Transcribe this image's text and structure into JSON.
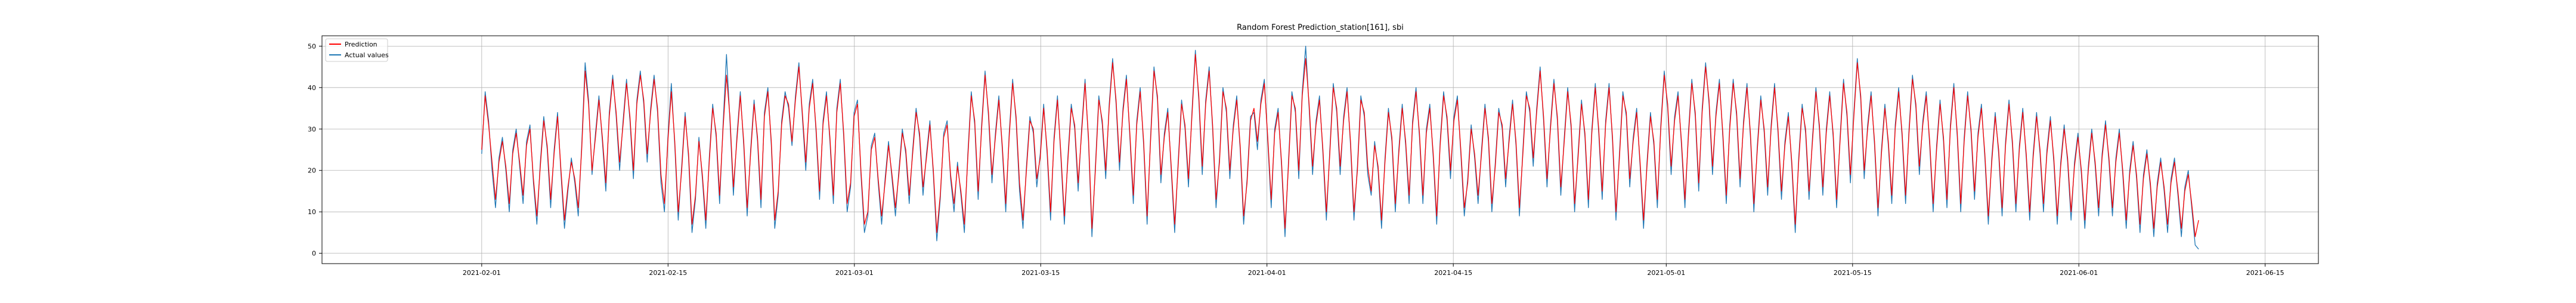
{
  "chart_data": {
    "type": "line",
    "title": "Random Forest Prediction_station[161], sbi",
    "xlabel": "",
    "ylabel": "",
    "x_start": "2021-02-01",
    "x_end": "2021-06-10",
    "xlim": [
      "2021-01-20",
      "2021-06-19"
    ],
    "ylim": [
      -2.5,
      52.5
    ],
    "x_ticks": [
      "2021-02-01",
      "2021-02-15",
      "2021-03-01",
      "2021-03-15",
      "2021-04-01",
      "2021-04-15",
      "2021-05-01",
      "2021-05-15",
      "2021-06-01",
      "2021-06-15"
    ],
    "y_ticks": [
      0,
      10,
      20,
      30,
      40,
      50
    ],
    "grid": true,
    "legend_position": "top-left",
    "series": [
      {
        "name": "Prediction",
        "color": "#ff0000",
        "values": [
          25,
          38,
          31,
          22,
          13,
          22,
          27,
          21,
          12,
          24,
          29,
          22,
          14,
          26,
          30,
          18,
          9,
          21,
          32,
          26,
          13,
          24,
          33,
          20,
          8,
          16,
          22,
          18,
          11,
          25,
          44,
          36,
          20,
          28,
          37,
          28,
          17,
          33,
          42,
          34,
          22,
          31,
          41,
          33,
          20,
          36,
          43,
          37,
          24,
          34,
          42,
          35,
          19,
          12,
          27,
          39,
          27,
          10,
          20,
          33,
          24,
          7,
          14,
          27,
          19,
          8,
          22,
          35,
          29,
          14,
          30,
          43,
          33,
          16,
          27,
          38,
          27,
          11,
          24,
          36,
          28,
          13,
          33,
          39,
          27,
          8,
          15,
          31,
          38,
          36,
          27,
          37,
          45,
          34,
          22,
          35,
          41,
          30,
          15,
          31,
          38,
          28,
          14,
          34,
          41,
          29,
          12,
          17,
          33,
          36,
          20,
          7,
          10,
          25,
          28,
          18,
          9,
          17,
          26,
          19,
          11,
          19,
          29,
          25,
          14,
          24,
          34,
          29,
          16,
          23,
          31,
          20,
          5,
          14,
          28,
          31,
          19,
          12,
          21,
          15,
          7,
          23,
          38,
          32,
          15,
          30,
          43,
          34,
          19,
          28,
          37,
          26,
          12,
          28,
          41,
          33,
          17,
          8,
          20,
          32,
          30,
          18,
          23,
          35,
          25,
          10,
          27,
          37,
          24,
          9,
          22,
          35,
          31,
          17,
          29,
          41,
          28,
          6,
          20,
          37,
          32,
          20,
          35,
          46,
          37,
          22,
          34,
          42,
          29,
          14,
          31,
          39,
          27,
          9,
          27,
          44,
          38,
          19,
          28,
          34,
          21,
          7,
          21,
          36,
          31,
          18,
          33,
          48,
          38,
          21,
          36,
          44,
          31,
          13,
          22,
          39,
          35,
          20,
          30,
          37,
          26,
          9,
          17,
          32,
          35,
          27,
          36,
          41,
          28,
          13,
          29,
          34,
          22,
          6,
          21,
          38,
          35,
          20,
          38,
          47,
          36,
          21,
          31,
          37,
          25,
          10,
          24,
          40,
          35,
          21,
          32,
          39,
          27,
          10,
          20,
          37,
          34,
          21,
          15,
          26,
          21,
          8,
          22,
          34,
          28,
          12,
          24,
          35,
          27,
          14,
          31,
          39,
          29,
          14,
          29,
          35,
          24,
          9,
          26,
          38,
          33,
          20,
          32,
          37,
          25,
          11,
          17,
          30,
          24,
          14,
          24,
          35,
          28,
          12,
          21,
          34,
          31,
          18,
          27,
          36,
          27,
          11,
          24,
          38,
          35,
          23,
          34,
          44,
          33,
          18,
          30,
          41,
          33,
          16,
          27,
          39,
          31,
          12,
          23,
          36,
          29,
          13,
          29,
          40,
          30,
          15,
          31,
          40,
          28,
          10,
          23,
          38,
          34,
          18,
          27,
          34,
          22,
          8,
          21,
          33,
          27,
          13,
          30,
          43,
          36,
          21,
          32,
          38,
          27,
          13,
          28,
          41,
          34,
          17,
          34,
          45,
          37,
          21,
          33,
          41,
          29,
          14,
          30,
          41,
          34,
          18,
          31,
          40,
          29,
          12,
          25,
          37,
          30,
          16,
          30,
          40,
          30,
          15,
          26,
          33,
          22,
          7,
          22,
          35,
          30,
          15,
          27,
          39,
          31,
          16,
          29,
          38,
          29,
          13,
          27,
          41,
          34,
          19,
          33,
          46,
          38,
          20,
          30,
          38,
          27,
          11,
          24,
          35,
          27,
          14,
          30,
          39,
          29,
          14,
          29,
          42,
          36,
          21,
          31,
          38,
          27,
          12,
          25,
          36,
          28,
          13,
          30,
          40,
          29,
          12,
          27,
          38,
          30,
          15,
          28,
          35,
          24,
          9,
          22,
          33,
          25,
          11,
          26,
          36,
          27,
          12,
          25,
          34,
          24,
          10,
          23,
          33,
          25,
          12,
          24,
          32,
          23,
          9,
          21,
          30,
          23,
          10,
          21,
          28,
          20,
          8,
          20,
          29,
          22,
          11,
          23,
          31,
          23,
          11,
          22,
          29,
          20,
          8,
          19,
          26,
          19,
          7,
          18,
          24,
          17,
          6,
          16,
          22,
          16,
          7,
          17,
          22,
          15,
          6,
          15,
          19,
          12,
          4,
          8
        ]
      },
      {
        "name": "Actual values",
        "color": "#1f77b4",
        "values": [
          24,
          39,
          32,
          20,
          11,
          23,
          28,
          20,
          10,
          25,
          30,
          21,
          12,
          27,
          31,
          17,
          7,
          22,
          33,
          25,
          11,
          25,
          34,
          19,
          6,
          15,
          23,
          17,
          9,
          26,
          46,
          37,
          19,
          29,
          38,
          27,
          15,
          34,
          43,
          33,
          20,
          32,
          42,
          32,
          18,
          37,
          44,
          36,
          22,
          35,
          43,
          34,
          17,
          10,
          28,
          41,
          26,
          8,
          21,
          34,
          23,
          5,
          13,
          28,
          18,
          6,
          23,
          36,
          28,
          12,
          31,
          48,
          32,
          14,
          28,
          39,
          26,
          9,
          25,
          37,
          27,
          11,
          34,
          40,
          26,
          6,
          14,
          32,
          39,
          35,
          26,
          38,
          46,
          33,
          20,
          36,
          42,
          29,
          13,
          32,
          39,
          27,
          12,
          35,
          42,
          28,
          10,
          16,
          34,
          37,
          19,
          5,
          9,
          26,
          29,
          17,
          7,
          18,
          27,
          18,
          9,
          20,
          30,
          24,
          12,
          25,
          35,
          28,
          14,
          24,
          32,
          19,
          3,
          13,
          29,
          32,
          18,
          10,
          22,
          14,
          5,
          24,
          39,
          31,
          13,
          31,
          44,
          33,
          17,
          29,
          38,
          25,
          10,
          29,
          42,
          32,
          15,
          6,
          21,
          33,
          29,
          16,
          24,
          36,
          24,
          8,
          28,
          38,
          23,
          7,
          23,
          36,
          30,
          15,
          30,
          42,
          27,
          4,
          21,
          38,
          31,
          18,
          36,
          47,
          36,
          20,
          35,
          43,
          28,
          12,
          32,
          40,
          26,
          7,
          28,
          45,
          37,
          17,
          29,
          35,
          20,
          5,
          22,
          37,
          30,
          16,
          34,
          49,
          37,
          19,
          37,
          45,
          30,
          11,
          23,
          40,
          34,
          18,
          31,
          38,
          25,
          7,
          18,
          33,
          34,
          25,
          37,
          42,
          27,
          11,
          30,
          35,
          21,
          4,
          22,
          39,
          34,
          18,
          39,
          50,
          35,
          19,
          32,
          38,
          24,
          8,
          25,
          41,
          34,
          19,
          33,
          40,
          26,
          8,
          21,
          38,
          33,
          19,
          14,
          27,
          20,
          6,
          23,
          35,
          27,
          10,
          25,
          36,
          26,
          12,
          32,
          40,
          28,
          12,
          30,
          36,
          23,
          7,
          27,
          39,
          32,
          18,
          33,
          38,
          24,
          9,
          18,
          31,
          23,
          12,
          25,
          36,
          27,
          10,
          22,
          35,
          30,
          16,
          28,
          37,
          26,
          9,
          25,
          39,
          34,
          21,
          35,
          45,
          32,
          16,
          31,
          42,
          32,
          14,
          28,
          40,
          30,
          10,
          24,
          37,
          28,
          11,
          30,
          41,
          29,
          13,
          32,
          41,
          27,
          8,
          24,
          39,
          33,
          16,
          28,
          35,
          21,
          6,
          22,
          34,
          26,
          11,
          31,
          44,
          35,
          19,
          33,
          39,
          26,
          11,
          29,
          42,
          33,
          15,
          35,
          46,
          36,
          19,
          34,
          42,
          28,
          12,
          31,
          42,
          33,
          16,
          32,
          41,
          28,
          10,
          26,
          38,
          29,
          14,
          31,
          41,
          29,
          13,
          27,
          34,
          21,
          5,
          23,
          36,
          29,
          13,
          28,
          40,
          30,
          14,
          30,
          39,
          28,
          11,
          28,
          42,
          33,
          17,
          34,
          47,
          37,
          18,
          31,
          39,
          26,
          9,
          25,
          36,
          26,
          12,
          31,
          40,
          28,
          12,
          30,
          43,
          35,
          19,
          32,
          39,
          26,
          10,
          26,
          37,
          27,
          11,
          31,
          41,
          28,
          10,
          28,
          39,
          29,
          13,
          29,
          36,
          23,
          7,
          23,
          34,
          24,
          9,
          27,
          37,
          26,
          10,
          26,
          35,
          23,
          8,
          24,
          34,
          24,
          10,
          25,
          33,
          22,
          7,
          22,
          31,
          22,
          8,
          22,
          29,
          19,
          6,
          21,
          30,
          21,
          9,
          24,
          32,
          22,
          9,
          23,
          30,
          19,
          6,
          20,
          27,
          18,
          5,
          19,
          25,
          16,
          4,
          17,
          23,
          15,
          5,
          18,
          23,
          14,
          4,
          16,
          20,
          11,
          2,
          1
        ]
      }
    ]
  }
}
